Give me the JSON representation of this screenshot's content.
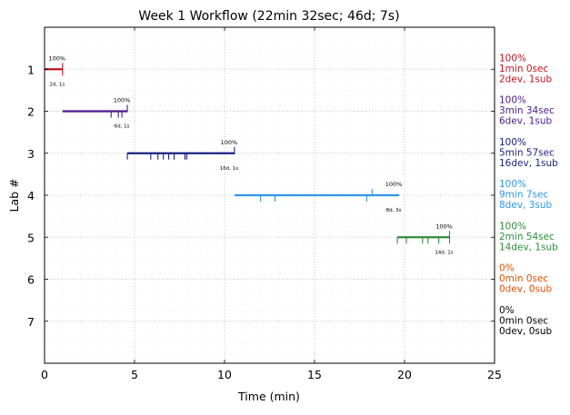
{
  "chart_data": {
    "type": "timeline",
    "title": "Week 1 Workflow (22min 32sec; 46d; 7s)",
    "xlabel": "Time (min)",
    "ylabel": "Lab #",
    "xlim": [
      0,
      25
    ],
    "ylim": [
      8,
      0
    ],
    "x_ticks": [
      0,
      5,
      10,
      15,
      20,
      25
    ],
    "y_ticks": [
      1,
      2,
      3,
      4,
      5,
      6,
      7
    ],
    "grid": true,
    "labs": [
      {
        "lab": 1,
        "color": "#c0151d",
        "start": 0.0,
        "end": 1.0,
        "dev_marks": [],
        "sub_marks": [
          1.0
        ],
        "pct_label": "100%",
        "count_label": "2d, 1s",
        "side": [
          "100%",
          "1min 0sec",
          "2dev, 1sub"
        ]
      },
      {
        "lab": 2,
        "color": "#4b1a8c",
        "start": 1.0,
        "end": 4.6,
        "dev_marks": [
          3.7,
          4.1,
          4.3
        ],
        "sub_marks": [
          4.6
        ],
        "pct_label": "100%",
        "count_label": "6d, 1s",
        "side": [
          "100%",
          "3min 34sec",
          "6dev, 1sub"
        ]
      },
      {
        "lab": 3,
        "color": "#1a237e",
        "start": 4.6,
        "end": 10.55,
        "dev_marks": [
          4.6,
          5.9,
          6.3,
          6.6,
          6.9,
          7.2,
          7.8,
          7.9
        ],
        "sub_marks": [
          10.55
        ],
        "pct_label": "100%",
        "count_label": "16d, 1s",
        "side": [
          "100%",
          "5min 57sec",
          "16dev, 1sub"
        ]
      },
      {
        "lab": 4,
        "color": "#2e96e8",
        "start": 10.55,
        "end": 19.7,
        "dev_marks": [
          12.0,
          12.8,
          17.9
        ],
        "sub_marks": [
          18.2
        ],
        "pct_label": "100%",
        "count_label": "8d, 3s",
        "side": [
          "100%",
          "9min 7sec",
          "8dev, 3sub"
        ]
      },
      {
        "lab": 5,
        "color": "#2e8b3a",
        "start": 19.6,
        "end": 22.5,
        "dev_marks": [
          19.6,
          20.1,
          21.0,
          21.3,
          21.9,
          22.5
        ],
        "sub_marks": [
          22.5
        ],
        "pct_label": "100%",
        "count_label": "14d, 1s",
        "side": [
          "100%",
          "2min 54sec",
          "14dev, 1sub"
        ]
      },
      {
        "lab": 6,
        "color": "#e65100",
        "start": null,
        "end": null,
        "dev_marks": [],
        "sub_marks": [],
        "pct_label": "",
        "count_label": "",
        "side": [
          "0%",
          "0min 0sec",
          "0dev, 0sub"
        ]
      },
      {
        "lab": 7,
        "color": "#000000",
        "start": null,
        "end": null,
        "dev_marks": [],
        "sub_marks": [],
        "pct_label": "",
        "count_label": "",
        "side": [
          "0%",
          "0min 0sec",
          "0dev, 0sub"
        ]
      }
    ]
  }
}
